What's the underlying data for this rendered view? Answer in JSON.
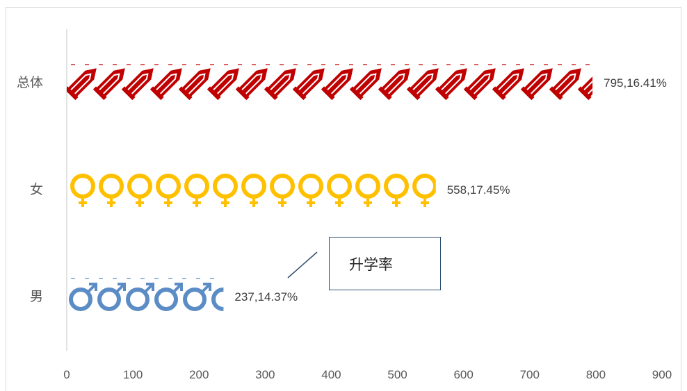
{
  "chart_data": {
    "type": "bar",
    "orientation": "horizontal",
    "categories": [
      "总体",
      "女",
      "男"
    ],
    "values": [
      795,
      558,
      237
    ],
    "rates": [
      "16.41%",
      "17.45%",
      "14.37%"
    ],
    "data_labels": [
      "795,16.41%",
      "558,17.45%",
      "237,14.37%"
    ],
    "xlim": [
      0,
      900
    ],
    "x_ticks": [
      "0",
      "100",
      "200",
      "300",
      "400",
      "500",
      "600",
      "700",
      "800",
      "900"
    ],
    "icons": [
      "rocket-icon",
      "female-symbol-icon",
      "male-symbol-icon"
    ],
    "colors": [
      "#c00000",
      "#ffc000",
      "#5b8cc5"
    ],
    "annotation": "升学率",
    "grid": false
  }
}
